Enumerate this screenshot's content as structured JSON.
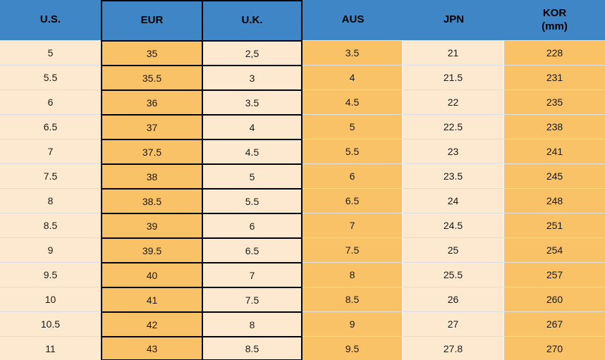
{
  "colors": {
    "header_bg": "#3E86C6",
    "orange_cell": "#FAC266",
    "cream_cell": "#FCE9CF",
    "black_border": "#000000",
    "light_border": "#DEDEDE",
    "vertical_separator": "#F1F1F1",
    "text": "#1A1A1A"
  },
  "chart_data": {
    "type": "table",
    "title": "",
    "columns": [
      {
        "id": "us",
        "label": "U.S.",
        "sublabel": "",
        "bg": "cream",
        "border": "light",
        "sep_right": false,
        "right_black": false
      },
      {
        "id": "eur",
        "label": "EUR",
        "sublabel": "",
        "bg": "orange",
        "border": "black",
        "sep_right": false,
        "right_black": false
      },
      {
        "id": "uk",
        "label": "U.K.",
        "sublabel": "",
        "bg": "cream",
        "border": "black",
        "sep_right": false,
        "right_black": true
      },
      {
        "id": "aus",
        "label": "AUS",
        "sublabel": "",
        "bg": "orange",
        "border": "light",
        "sep_right": true,
        "right_black": false
      },
      {
        "id": "jpn",
        "label": "JPN",
        "sublabel": "",
        "bg": "cream",
        "border": "light",
        "sep_right": true,
        "right_black": false
      },
      {
        "id": "kor",
        "label": "KOR",
        "sublabel": "(mm)",
        "bg": "orange",
        "border": "light",
        "sep_right": false,
        "right_black": false
      }
    ],
    "rows": [
      [
        "5",
        "35",
        "2,5",
        "3.5",
        "21",
        "228"
      ],
      [
        "5.5",
        "35.5",
        "3",
        "4",
        "21.5",
        "231"
      ],
      [
        "6",
        "36",
        "3.5",
        "4.5",
        "22",
        "235"
      ],
      [
        "6.5",
        "37",
        "4",
        "5",
        "22.5",
        "238"
      ],
      [
        "7",
        "37.5",
        "4.5",
        "5.5",
        "23",
        "241"
      ],
      [
        "7.5",
        "38",
        "5",
        "6",
        "23.5",
        "245"
      ],
      [
        "8",
        "38.5",
        "5.5",
        "6.5",
        "24",
        "248"
      ],
      [
        "8.5",
        "39",
        "6",
        "7",
        "24.5",
        "251"
      ],
      [
        "9",
        "39.5",
        "6.5",
        "7.5",
        "25",
        "254"
      ],
      [
        "9.5",
        "40",
        "7",
        "8",
        "25.5",
        "257"
      ],
      [
        "10",
        "41",
        "7.5",
        "8.5",
        "26",
        "260"
      ],
      [
        "10.5",
        "42",
        "8",
        "9",
        "27",
        "267"
      ],
      [
        "11",
        "43",
        "8.5",
        "9.5",
        "27.8",
        "270"
      ]
    ]
  }
}
